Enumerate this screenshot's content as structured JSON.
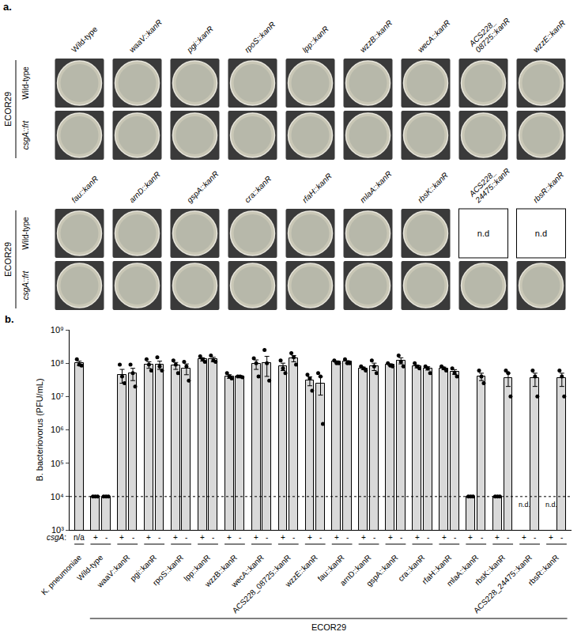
{
  "panel_a": {
    "label": "a.",
    "strain_label": "ECOR29",
    "row_labels": [
      "Wild-type",
      "csgA::frt"
    ],
    "blocks": [
      {
        "columns": [
          {
            "label": "Wild-type",
            "cells": [
              null,
              null
            ]
          },
          {
            "label": "waaV::kanR",
            "cells": [
              null,
              null
            ]
          },
          {
            "label": "pgi::kanR",
            "cells": [
              null,
              null
            ]
          },
          {
            "label": "rpoS::kanR",
            "cells": [
              null,
              null
            ]
          },
          {
            "label": "lpp::kanR",
            "cells": [
              null,
              null
            ]
          },
          {
            "label": "wzzB::kanR",
            "cells": [
              null,
              null
            ]
          },
          {
            "label": "wecA::kanR",
            "cells": [
              null,
              null
            ]
          },
          {
            "label": "ACS228_08725::kanR",
            "cells": [
              null,
              null
            ]
          },
          {
            "label": "wzzE::kanR",
            "cells": [
              null,
              null
            ]
          }
        ]
      },
      {
        "columns": [
          {
            "label": "fau::kanR",
            "cells": [
              null,
              null
            ]
          },
          {
            "label": "arnD::kanR",
            "cells": [
              null,
              null
            ]
          },
          {
            "label": "gspA::kanR",
            "cells": [
              null,
              null
            ]
          },
          {
            "label": "cra::kanR",
            "cells": [
              null,
              null
            ]
          },
          {
            "label": "rfaH::kanR",
            "cells": [
              null,
              null
            ]
          },
          {
            "label": "mlaA::kanR",
            "cells": [
              null,
              null
            ]
          },
          {
            "label": "rbsK::kanR",
            "cells": [
              null,
              null
            ]
          },
          {
            "label": "ACS228_24475::kanR",
            "cells": [
              "n.d",
              null
            ]
          },
          {
            "label": "rbsR::kanR",
            "cells": [
              "n.d",
              null
            ]
          }
        ]
      }
    ]
  },
  "chart_data": {
    "type": "bar",
    "panel_label": "b.",
    "y_title": "B. bacteriovorus (PFU/mL)",
    "log": "y",
    "ylim": [
      1000,
      1000000000
    ],
    "yticks": [
      {
        "value": 1000,
        "label": "10³"
      },
      {
        "value": 10000,
        "label": "10⁴"
      },
      {
        "value": 100000,
        "label": "10⁵"
      },
      {
        "value": 1000000,
        "label": "10⁶"
      },
      {
        "value": 10000000,
        "label": "10⁷"
      },
      {
        "value": 100000000,
        "label": "10⁸"
      },
      {
        "value": 1000000000,
        "label": "10⁹"
      }
    ],
    "color": "#d9d9d9",
    "detection_limit": 10000,
    "row_label": "csgA:",
    "nd_label": "n.d.",
    "background_bracket": {
      "label": "ECOR29",
      "from": "Wild-type",
      "to": "rbsR::kanR"
    },
    "groups": [
      {
        "name": "K. pneumoniae",
        "bars": [
          {
            "csgA": "n/a",
            "value": 100000000,
            "error": 15000000,
            "points": [
              130000000,
              90000000,
              85000000
            ]
          }
        ]
      },
      {
        "name": "Wild-type",
        "bars": [
          {
            "csgA": "+",
            "value": 10000,
            "error": 0,
            "points": [
              10000,
              10000,
              10000
            ]
          },
          {
            "csgA": "-",
            "value": 10000,
            "error": 0,
            "points": [
              10000,
              10000,
              10000
            ]
          }
        ]
      },
      {
        "name": "waaV::kanR",
        "bars": [
          {
            "csgA": "+",
            "value": 45000000,
            "error": 20000000,
            "points": [
              90000000,
              40000000,
              25000000
            ]
          },
          {
            "csgA": "-",
            "value": 50000000,
            "error": 20000000,
            "points": [
              90000000,
              50000000,
              20000000
            ]
          }
        ]
      },
      {
        "name": "pgi::kanR",
        "bars": [
          {
            "csgA": "+",
            "value": 90000000,
            "error": 20000000,
            "points": [
              130000000,
              90000000,
              60000000
            ]
          },
          {
            "csgA": "-",
            "value": 90000000,
            "error": 25000000,
            "points": [
              150000000,
              80000000,
              60000000
            ]
          }
        ]
      },
      {
        "name": "rpoS::kanR",
        "bars": [
          {
            "csgA": "+",
            "value": 85000000,
            "error": 20000000,
            "points": [
              120000000,
              90000000,
              50000000
            ]
          },
          {
            "csgA": "-",
            "value": 70000000,
            "error": 25000000,
            "points": [
              110000000,
              80000000,
              30000000
            ]
          }
        ]
      },
      {
        "name": "lpp::kanR",
        "bars": [
          {
            "csgA": "+",
            "value": 130000000,
            "error": 15000000,
            "points": [
              160000000,
              130000000,
              110000000
            ]
          },
          {
            "csgA": "-",
            "value": 130000000,
            "error": 20000000,
            "points": [
              170000000,
              120000000,
              110000000
            ]
          }
        ]
      },
      {
        "name": "wzzB::kanR",
        "bars": [
          {
            "csgA": "+",
            "value": 40000000,
            "error": 5000000,
            "points": [
              50000000,
              40000000,
              35000000
            ]
          },
          {
            "csgA": "-",
            "value": 40000000,
            "error": 2000000,
            "points": [
              40000000,
              40000000,
              38000000
            ]
          }
        ]
      },
      {
        "name": "wecA::kanR",
        "bars": [
          {
            "csgA": "+",
            "value": 95000000,
            "error": 30000000,
            "points": [
              140000000,
              100000000,
              40000000
            ]
          },
          {
            "csgA": "-",
            "value": 100000000,
            "error": 60000000,
            "points": [
              250000000,
              100000000,
              30000000
            ]
          }
        ]
      },
      {
        "name": "ACS228_08725::kanR",
        "bars": [
          {
            "csgA": "+",
            "value": 80000000,
            "error": 20000000,
            "points": [
              120000000,
              70000000,
              50000000
            ]
          },
          {
            "csgA": "-",
            "value": 140000000,
            "error": 30000000,
            "points": [
              200000000,
              150000000,
              90000000
            ]
          }
        ]
      },
      {
        "name": "wzzE::kanR",
        "bars": [
          {
            "csgA": "+",
            "value": 30000000,
            "error": 9000000,
            "points": [
              45000000,
              35000000,
              15000000
            ]
          },
          {
            "csgA": "-",
            "value": 25000000,
            "error": 14000000,
            "points": [
              50000000,
              40000000,
              1500000
            ]
          }
        ]
      },
      {
        "name": "fau::kanR",
        "bars": [
          {
            "csgA": "+",
            "value": 110000000,
            "error": 7000000,
            "points": [
              120000000,
              100000000,
              100000000
            ]
          },
          {
            "csgA": "-",
            "value": 110000000,
            "error": 9000000,
            "points": [
              130000000,
              100000000,
              100000000
            ]
          }
        ]
      },
      {
        "name": "arnD::kanR",
        "bars": [
          {
            "csgA": "+",
            "value": 70000000,
            "error": 6000000,
            "points": [
              80000000,
              70000000,
              60000000
            ]
          },
          {
            "csgA": "-",
            "value": 80000000,
            "error": 20000000,
            "points": [
              120000000,
              80000000,
              50000000
            ]
          }
        ]
      },
      {
        "name": "gspA::kanR",
        "bars": [
          {
            "csgA": "+",
            "value": 90000000,
            "error": 6000000,
            "points": [
              100000000,
              85000000,
              80000000
            ]
          },
          {
            "csgA": "-",
            "value": 120000000,
            "error": 25000000,
            "points": [
              170000000,
              110000000,
              80000000
            ]
          }
        ]
      },
      {
        "name": "cra::kanR",
        "bars": [
          {
            "csgA": "+",
            "value": 80000000,
            "error": 8000000,
            "points": [
              100000000,
              80000000,
              70000000
            ]
          },
          {
            "csgA": "-",
            "value": 70000000,
            "error": 8000000,
            "points": [
              80000000,
              70000000,
              50000000
            ]
          }
        ]
      },
      {
        "name": "rfaH::kanR",
        "bars": [
          {
            "csgA": "+",
            "value": 70000000,
            "error": 6000000,
            "points": [
              80000000,
              70000000,
              60000000
            ]
          },
          {
            "csgA": "-",
            "value": 55000000,
            "error": 9000000,
            "points": [
              70000000,
              50000000,
              40000000
            ]
          }
        ]
      },
      {
        "name": "mlaA::kanR",
        "bars": [
          {
            "csgA": "+",
            "value": 10000,
            "error": 0,
            "points": [
              10000,
              10000,
              10000
            ]
          },
          {
            "csgA": "-",
            "value": 40000000,
            "error": 10000000,
            "points": [
              60000000,
              40000000,
              25000000
            ]
          }
        ]
      },
      {
        "name": "rbsK::kanR",
        "bars": [
          {
            "csgA": "+",
            "value": 10000,
            "error": 0,
            "points": [
              10000,
              10000,
              10000
            ]
          },
          {
            "csgA": "-",
            "value": 35000000,
            "error": 15000000,
            "points": [
              60000000,
              50000000,
              10000000
            ]
          }
        ]
      },
      {
        "name": "ACS228_24475::kanR",
        "bars": [
          {
            "csgA": "+",
            "value": null,
            "error": null,
            "points": []
          },
          {
            "csgA": "-",
            "value": 35000000,
            "error": 15000000,
            "points": [
              60000000,
              40000000,
              10000000
            ]
          }
        ]
      },
      {
        "name": "rbsR::kanR",
        "bars": [
          {
            "csgA": "+",
            "value": null,
            "error": null,
            "points": []
          },
          {
            "csgA": "-",
            "value": 35000000,
            "error": 15000000,
            "points": [
              60000000,
              40000000,
              10000000
            ]
          }
        ]
      }
    ]
  }
}
